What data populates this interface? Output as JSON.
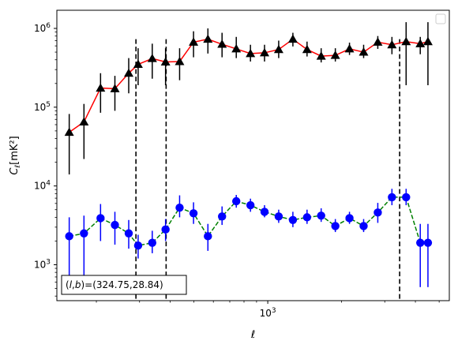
{
  "chart_data": {
    "type": "scatter",
    "title": "",
    "xlabel": "ℓ",
    "ylabel_main": "C",
    "ylabel_sub": "ℓ",
    "ylabel_unit": "[mK²]",
    "xscale": "log",
    "yscale": "log",
    "xlim": [
      138,
      5500
    ],
    "ylim": [
      350,
      1700000
    ],
    "x_major_ticks": [
      {
        "value": 1000,
        "base": "10",
        "exp": "3"
      }
    ],
    "y_major_ticks": [
      {
        "value": 1000,
        "base": "10",
        "exp": "3"
      },
      {
        "value": 10000,
        "base": "10",
        "exp": "4"
      },
      {
        "value": 100000,
        "base": "10",
        "exp": "5"
      },
      {
        "value": 1000000,
        "base": "10",
        "exp": "6"
      }
    ],
    "legend": {
      "placement": "top-right",
      "entries": []
    },
    "annotation": {
      "prefix": "(",
      "l": "l",
      "comma": ",",
      "b": "b",
      "suffix": ")=(324.75,28.84)"
    },
    "vlines": [
      {
        "x": 290,
        "ymin": 350,
        "ymax": 730000
      },
      {
        "x": 385,
        "ymin": 350,
        "ymax": 730000
      },
      {
        "x": 3450,
        "ymin": 350,
        "ymax": 730000
      }
    ],
    "series": [
      {
        "marker": "triangle",
        "marker_color": "#000000",
        "line_color": "#ff0000",
        "line_style": "solid",
        "x": [
          155,
          178,
          208,
          238,
          271,
          296,
          338,
          383,
          437,
          498,
          570,
          651,
          744,
          850,
          970,
          1108,
          1266,
          1446,
          1651,
          1886,
          2154,
          2460,
          2810,
          3209,
          3666,
          4187,
          4500
        ],
        "y": [
          48000,
          65000,
          175000,
          172000,
          270000,
          350000,
          415000,
          375000,
          380000,
          670000,
          730000,
          630000,
          550000,
          480000,
          490000,
          540000,
          730000,
          540000,
          445000,
          455000,
          550000,
          500000,
          670000,
          620000,
          680000,
          640000,
          680000
        ],
        "err_low": [
          14000,
          22000,
          85000,
          90000,
          150000,
          190000,
          230000,
          190000,
          220000,
          430000,
          480000,
          430000,
          420000,
          380000,
          380000,
          420000,
          590000,
          440000,
          370000,
          380000,
          460000,
          420000,
          550000,
          470000,
          190000,
          470000,
          190000
        ],
        "err_high": [
          82000,
          110000,
          270000,
          250000,
          420000,
          560000,
          640000,
          560000,
          560000,
          920000,
          1000000,
          880000,
          780000,
          620000,
          620000,
          700000,
          880000,
          680000,
          560000,
          560000,
          660000,
          620000,
          800000,
          780000,
          1200000,
          780000,
          1200000
        ]
      },
      {
        "marker": "circle",
        "marker_color": "#0000ff",
        "line_color": "#008000",
        "line_style": "dashed",
        "x": [
          155,
          178,
          208,
          238,
          271,
          296,
          338,
          383,
          437,
          498,
          570,
          651,
          744,
          850,
          970,
          1108,
          1266,
          1446,
          1651,
          1886,
          2154,
          2460,
          2810,
          3209,
          3666,
          4187,
          4500
        ],
        "y": [
          2300,
          2500,
          3900,
          3200,
          2500,
          1750,
          1900,
          2800,
          5300,
          4500,
          2300,
          4100,
          6400,
          5700,
          4700,
          4100,
          3700,
          4000,
          4200,
          3100,
          3900,
          3100,
          4600,
          7200,
          7200,
          1900,
          1900
        ],
        "err_low": [
          700,
          700,
          2000,
          1800,
          1600,
          1200,
          1400,
          2000,
          4000,
          3300,
          1500,
          3200,
          5300,
          4700,
          4000,
          3400,
          3000,
          3300,
          3500,
          2600,
          3300,
          2600,
          3400,
          5700,
          5700,
          520,
          520
        ],
        "err_high": [
          4000,
          4200,
          5900,
          4700,
          3700,
          2400,
          2700,
          3800,
          7600,
          6200,
          3300,
          5500,
          7700,
          6900,
          5700,
          5000,
          4700,
          5000,
          5200,
          3800,
          4700,
          3800,
          6100,
          9200,
          9200,
          3300,
          3300
        ]
      }
    ]
  }
}
